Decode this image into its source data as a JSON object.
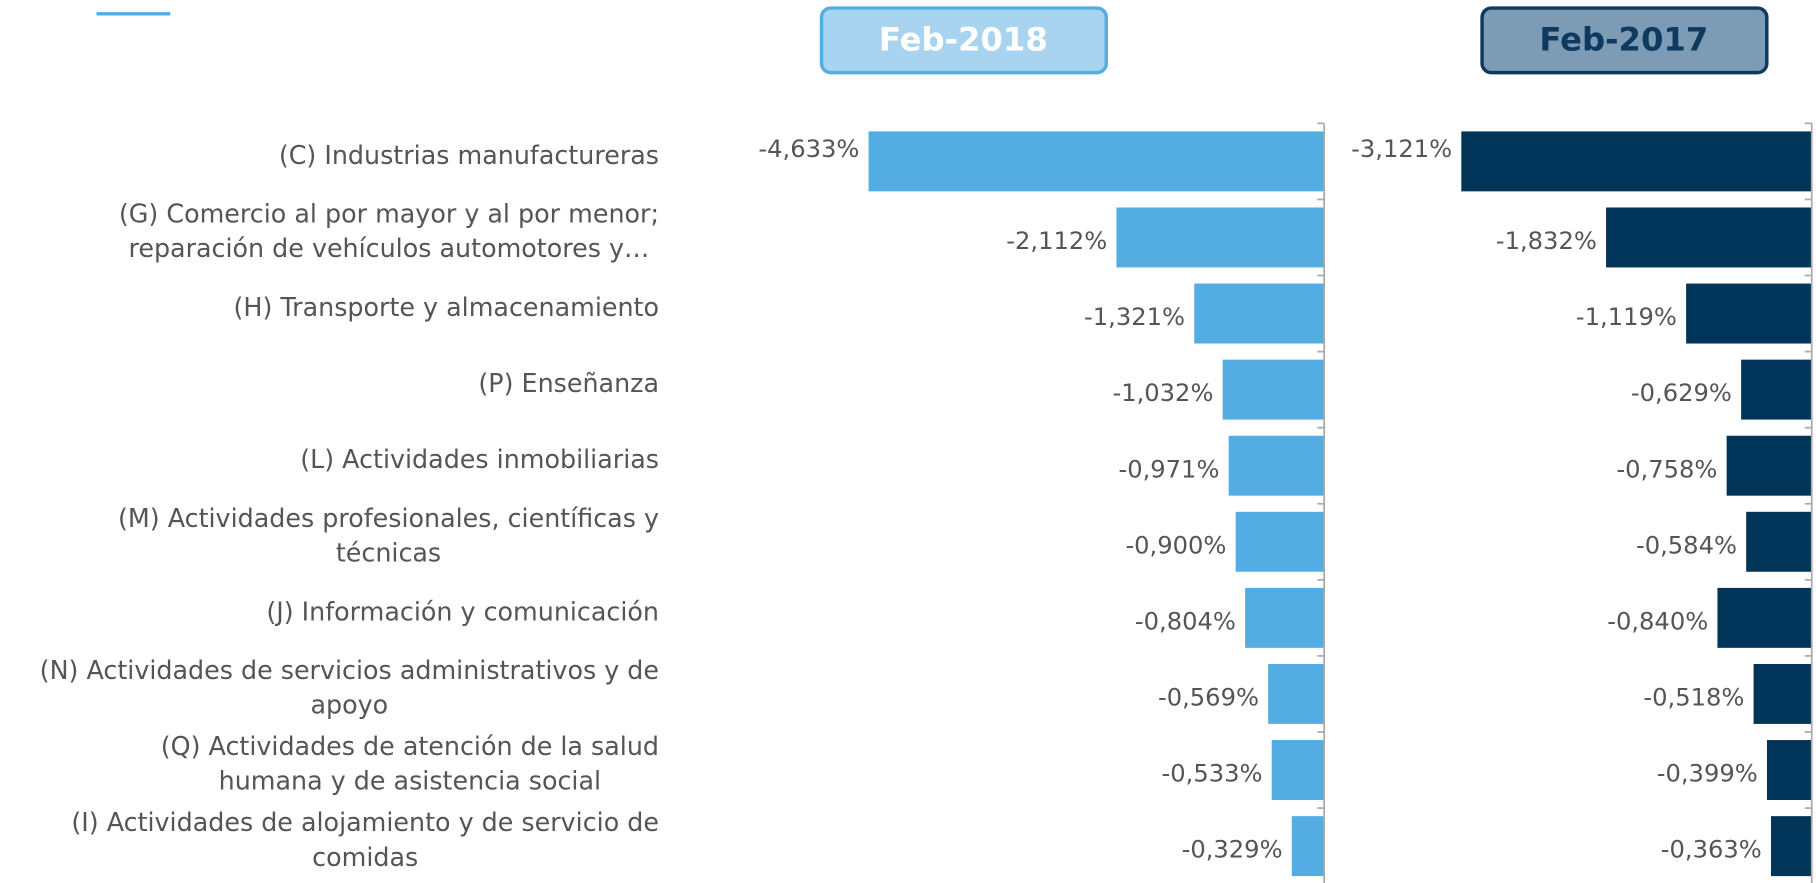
{
  "chart_data": [
    {
      "type": "bar",
      "title": "Feb-2018",
      "color": "#53ade2",
      "categories": [
        [
          "(C) Industrias manufactureras"
        ],
        [
          "(G) Comercio al por mayor y al por menor;",
          "reparación de vehículos automotores y…"
        ],
        [
          "(H) Transporte y almacenamiento"
        ],
        [
          "(P) Enseñanza"
        ],
        [
          "(L) Actividades inmobiliarias"
        ],
        [
          "(M) Actividades profesionales, científicas y",
          "técnicas"
        ],
        [
          "(J) Información y comunicación"
        ],
        [
          "(N) Actividades de servicios administrativos y de",
          "apoyo"
        ],
        [
          "(Q) Actividades de atención de la salud",
          "humana y de asistencia social"
        ],
        [
          "(I) Actividades de alojamiento y de servicio de",
          "comidas"
        ]
      ],
      "values": [
        -4.633,
        -2.112,
        -1.321,
        -1.032,
        -0.971,
        -0.9,
        -0.804,
        -0.569,
        -0.533,
        -0.329
      ],
      "value_labels": [
        "-4,633%",
        "-2,112%",
        "-1,321%",
        "-1,032%",
        "-0,971%",
        "-0,900%",
        "-0,804%",
        "-0,569%",
        "-0,533%",
        "-0,329%"
      ]
    },
    {
      "type": "bar",
      "title": "Feb-2017",
      "color": "#003459",
      "values": [
        -3.121,
        -1.832,
        -1.119,
        -0.629,
        -0.758,
        -0.584,
        -0.84,
        -0.518,
        -0.399,
        -0.363
      ],
      "value_labels": [
        "-3,121%",
        "-1,832%",
        "-1,119%",
        "-0,629%",
        "-0,758%",
        "-0,584%",
        "-0,840%",
        "-0,518%",
        "-0,399%",
        "-0,363%"
      ]
    }
  ]
}
